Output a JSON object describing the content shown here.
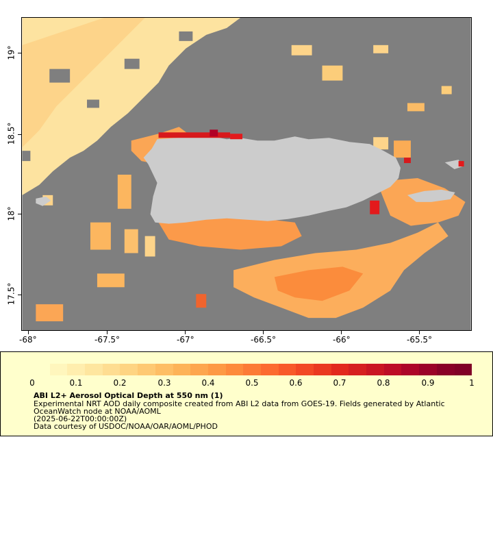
{
  "map": {
    "y_ticks": [
      "19°",
      "18.5°",
      "18°",
      "17.5°"
    ],
    "x_ticks": [
      "-68°",
      "-67.5°",
      "-67°",
      "-66.5°",
      "-66°",
      "-65.5°"
    ],
    "colors": {
      "ocean": "#7f7f7f",
      "land": "#cccccc",
      "aod_low": "#fde7a5",
      "aod_mid": "#fbb45a",
      "aod_high": "#d7191c"
    }
  },
  "legend": {
    "colorbar_labels": [
      "0",
      "0.1",
      "0.2",
      "0.3",
      "0.4",
      "0.5",
      "0.6",
      "0.7",
      "0.8",
      "0.9",
      "1"
    ],
    "title": "ABI L2+ Aerosol Optical Depth at 550 nm (1)",
    "line1": "Experimental NRT AOD daily composite created from ABI L2 data from GOES-19. Fields generated by Atlantic",
    "line2": "OceanWatch node at NOAA/AOML",
    "line3": "(2025-06-22T00:00:00Z)",
    "line4": "Data courtesy of USDOC/NOAA/OAR/AOML/PHOD"
  }
}
